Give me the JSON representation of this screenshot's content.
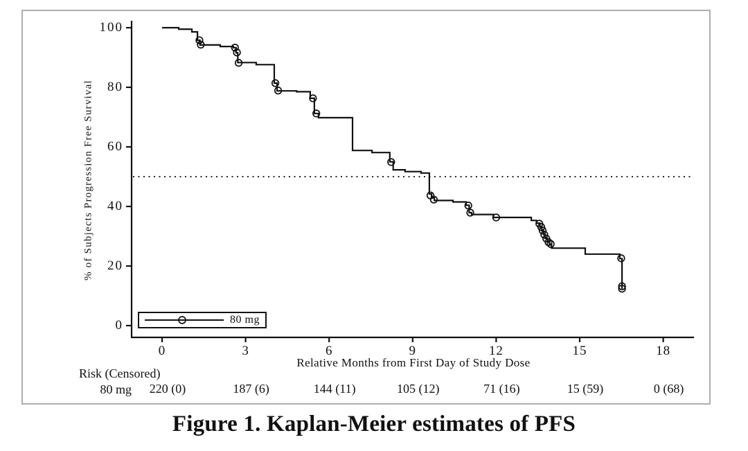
{
  "figure": {
    "caption": "Figure 1. Kaplan-Meier estimates of PFS"
  },
  "chart_data": {
    "type": "line",
    "subtype": "kaplan-meier-step",
    "title": "",
    "xlabel": "Relative Months from First Day of Study Dose",
    "ylabel": "% of Subjects Progression Free Survival",
    "xticks": [
      0,
      3,
      6,
      9,
      12,
      15,
      18
    ],
    "yticks": [
      0,
      20,
      40,
      60,
      80,
      100
    ],
    "xlim": [
      -1.1,
      19.1
    ],
    "ylim": [
      0,
      104
    ],
    "grid": "off",
    "median_reference_line_y": 50,
    "legend": {
      "label": "80 mg",
      "position": "bottom-left"
    },
    "series": [
      {
        "name": "80 mg",
        "steps": [
          [
            0,
            100
          ],
          [
            0.6,
            100
          ],
          [
            0.6,
            99.5
          ],
          [
            1.07,
            99.5
          ],
          [
            1.07,
            98.6
          ],
          [
            1.27,
            98.6
          ],
          [
            1.27,
            95.8
          ],
          [
            1.36,
            95.8
          ],
          [
            1.36,
            94.2
          ],
          [
            2.09,
            94.2
          ],
          [
            2.09,
            93.7
          ],
          [
            2.56,
            93.7
          ],
          [
            2.56,
            93.3
          ],
          [
            2.66,
            93.3
          ],
          [
            2.66,
            91.6
          ],
          [
            2.72,
            91.6
          ],
          [
            2.72,
            88.3
          ],
          [
            3.38,
            88.3
          ],
          [
            3.38,
            87.6
          ],
          [
            4.03,
            87.6
          ],
          [
            4.03,
            81.4
          ],
          [
            4.13,
            81.4
          ],
          [
            4.13,
            78.8
          ],
          [
            4.83,
            78.8
          ],
          [
            4.83,
            78.5
          ],
          [
            5.32,
            78.5
          ],
          [
            5.32,
            76.3
          ],
          [
            5.47,
            76.3
          ],
          [
            5.47,
            71.2
          ],
          [
            5.62,
            71.2
          ],
          [
            5.62,
            69.8
          ],
          [
            6.84,
            69.8
          ],
          [
            6.84,
            58.8
          ],
          [
            7.54,
            58.8
          ],
          [
            7.54,
            58.1
          ],
          [
            8.18,
            58.1
          ],
          [
            8.18,
            55.0
          ],
          [
            8.3,
            55.0
          ],
          [
            8.3,
            52.3
          ],
          [
            8.73,
            52.3
          ],
          [
            8.73,
            51.7
          ],
          [
            9.3,
            51.7
          ],
          [
            9.3,
            51.2
          ],
          [
            9.6,
            51.2
          ],
          [
            9.6,
            44.2
          ],
          [
            9.68,
            44.2
          ],
          [
            9.68,
            42.9
          ],
          [
            9.78,
            42.9
          ],
          [
            9.78,
            42.0
          ],
          [
            10.45,
            42.0
          ],
          [
            10.45,
            41.5
          ],
          [
            10.92,
            41.5
          ],
          [
            10.92,
            40.4
          ],
          [
            11.03,
            40.4
          ],
          [
            11.03,
            37.9
          ],
          [
            11.12,
            37.9
          ],
          [
            11.12,
            37.3
          ],
          [
            11.9,
            37.3
          ],
          [
            11.9,
            36.3
          ],
          [
            13.26,
            36.3
          ],
          [
            13.26,
            35.3
          ],
          [
            13.45,
            35.3
          ],
          [
            13.45,
            34.4
          ],
          [
            13.57,
            34.4
          ],
          [
            13.57,
            33.2
          ],
          [
            13.64,
            33.2
          ],
          [
            13.64,
            31.9
          ],
          [
            13.7,
            31.9
          ],
          [
            13.7,
            30.6
          ],
          [
            13.76,
            30.6
          ],
          [
            13.76,
            29.3
          ],
          [
            13.84,
            29.3
          ],
          [
            13.84,
            28.1
          ],
          [
            13.92,
            28.1
          ],
          [
            13.92,
            27.3
          ],
          [
            13.99,
            27.3
          ],
          [
            13.99,
            26.0
          ],
          [
            15.2,
            26.0
          ],
          [
            15.2,
            24.0
          ],
          [
            16.44,
            24.0
          ],
          [
            16.44,
            22.5
          ],
          [
            16.52,
            22.5
          ],
          [
            16.52,
            12.4
          ]
        ],
        "censor_marks": [
          [
            1.34,
            95.8
          ],
          [
            1.39,
            94.3
          ],
          [
            2.62,
            93.3
          ],
          [
            2.69,
            91.7
          ],
          [
            2.75,
            88.2
          ],
          [
            4.07,
            81.4
          ],
          [
            4.17,
            78.9
          ],
          [
            5.42,
            76.3
          ],
          [
            5.54,
            71.2
          ],
          [
            8.23,
            54.9
          ],
          [
            9.64,
            43.7
          ],
          [
            9.76,
            42.3
          ],
          [
            11.0,
            40.3
          ],
          [
            11.07,
            37.9
          ],
          [
            12.0,
            36.3
          ],
          [
            13.55,
            34.2
          ],
          [
            13.62,
            33.1
          ],
          [
            13.67,
            31.9
          ],
          [
            13.73,
            30.5
          ],
          [
            13.8,
            29.2
          ],
          [
            13.88,
            28.0
          ],
          [
            13.96,
            27.4
          ],
          [
            16.49,
            22.6
          ],
          [
            16.52,
            13.2
          ],
          [
            16.52,
            12.4
          ]
        ]
      }
    ]
  },
  "risk_table": {
    "title": "Risk (Censored)",
    "row_label": "80 mg",
    "times": [
      0,
      3,
      6,
      9,
      12,
      15,
      18
    ],
    "values": [
      "220 (0)",
      "187 (6)",
      "144 (11)",
      "105 (12)",
      "71 (16)",
      "15 (59)",
      "0 (68)"
    ]
  },
  "colors": {
    "curve": "#111111",
    "axis": "#111111",
    "median_line": "#222222",
    "frame_border": "#aeaeae",
    "background": "#ffffff"
  }
}
